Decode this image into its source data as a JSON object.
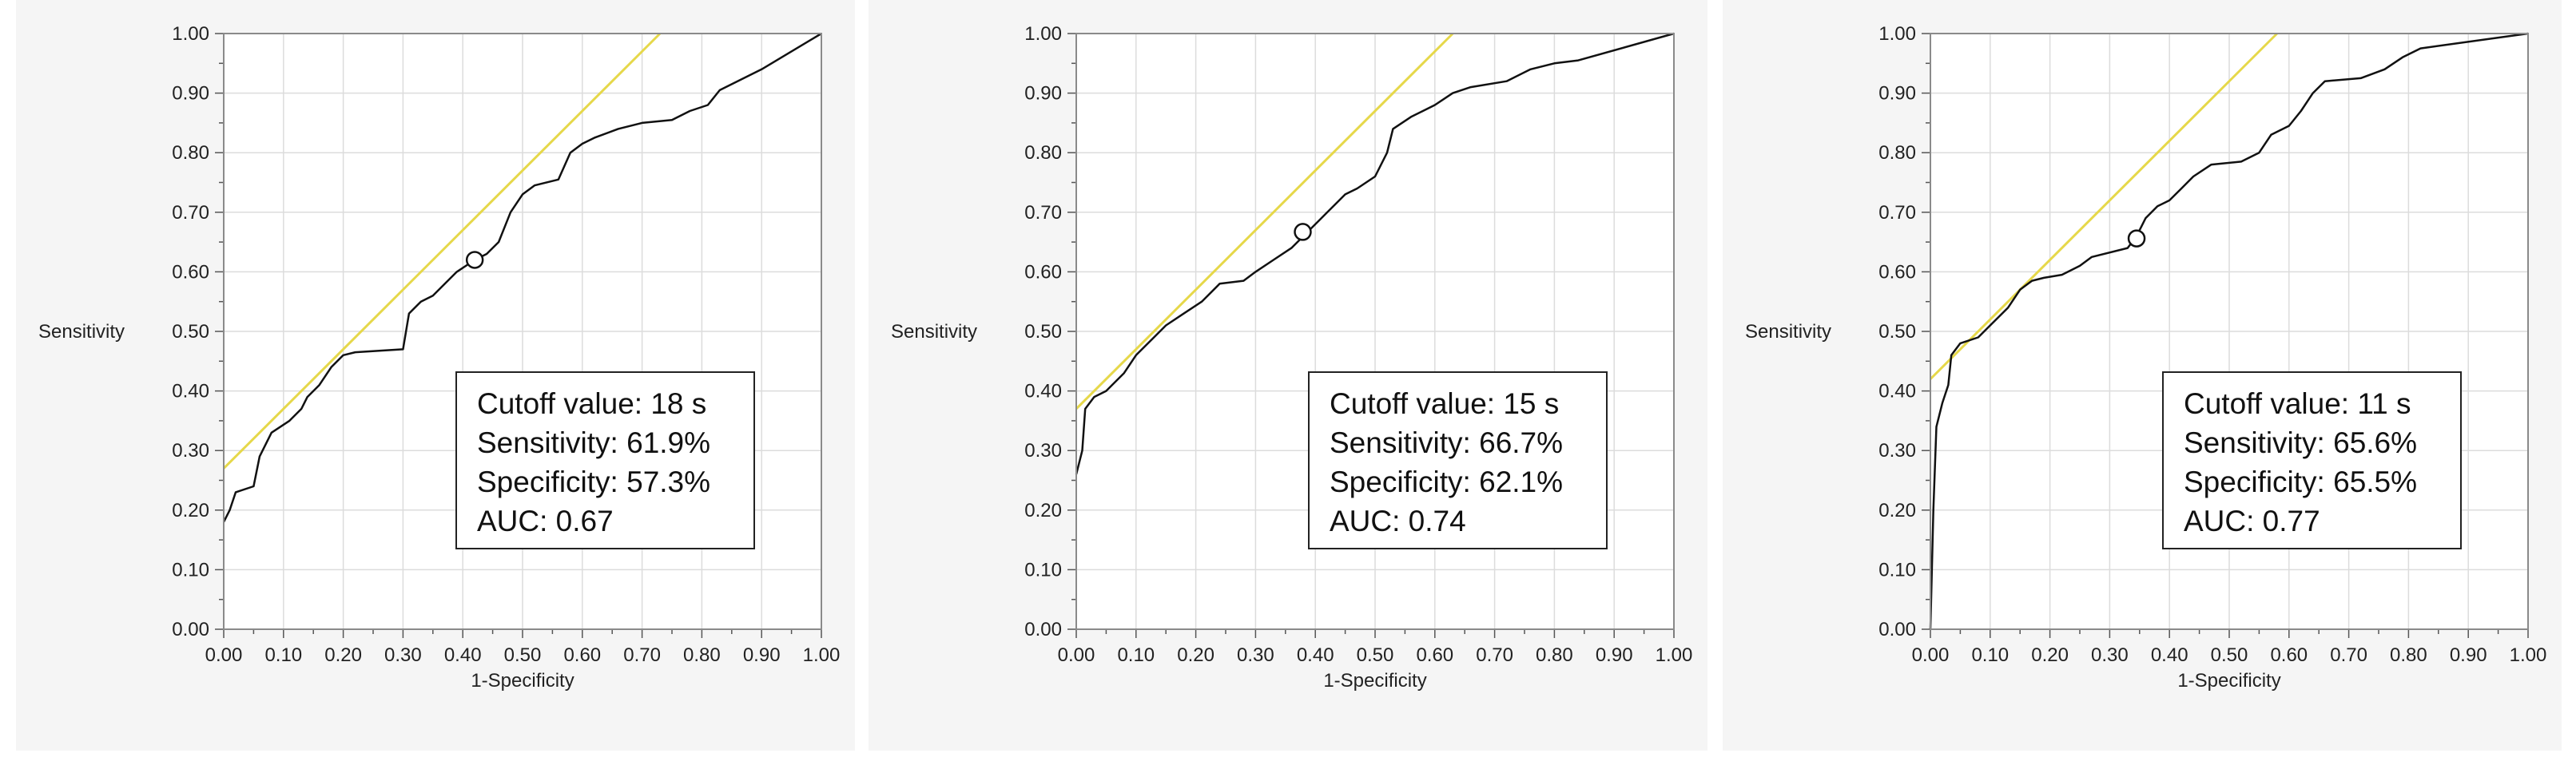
{
  "chart_data": [
    {
      "type": "line",
      "title": "",
      "xlabel": "1-Specificity",
      "ylabel": "Sensitivity",
      "xlim": [
        0,
        1
      ],
      "ylim": [
        0,
        1
      ],
      "xticks": [
        "0.00",
        "0.10",
        "0.20",
        "0.30",
        "0.40",
        "0.50",
        "0.60",
        "0.70",
        "0.80",
        "0.90",
        "1.00"
      ],
      "yticks": [
        "0.00",
        "0.10",
        "0.20",
        "0.30",
        "0.40",
        "0.50",
        "0.60",
        "0.70",
        "0.80",
        "0.90",
        "1.00"
      ],
      "grid": true,
      "colors": {
        "roc": "#111111",
        "tangent": "#e6d84a",
        "grid": "#dcdcdc"
      },
      "roc": [
        [
          0,
          0.18
        ],
        [
          0.01,
          0.2
        ],
        [
          0.02,
          0.23
        ],
        [
          0.05,
          0.24
        ],
        [
          0.06,
          0.29
        ],
        [
          0.08,
          0.33
        ],
        [
          0.11,
          0.35
        ],
        [
          0.13,
          0.37
        ],
        [
          0.14,
          0.39
        ],
        [
          0.16,
          0.41
        ],
        [
          0.18,
          0.44
        ],
        [
          0.2,
          0.46
        ],
        [
          0.22,
          0.465
        ],
        [
          0.3,
          0.47
        ],
        [
          0.31,
          0.53
        ],
        [
          0.33,
          0.55
        ],
        [
          0.35,
          0.56
        ],
        [
          0.37,
          0.58
        ],
        [
          0.39,
          0.6
        ],
        [
          0.42,
          0.62
        ],
        [
          0.44,
          0.63
        ],
        [
          0.46,
          0.65
        ],
        [
          0.48,
          0.7
        ],
        [
          0.5,
          0.73
        ],
        [
          0.52,
          0.745
        ],
        [
          0.56,
          0.755
        ],
        [
          0.58,
          0.8
        ],
        [
          0.6,
          0.815
        ],
        [
          0.62,
          0.825
        ],
        [
          0.66,
          0.84
        ],
        [
          0.7,
          0.85
        ],
        [
          0.75,
          0.855
        ],
        [
          0.78,
          0.87
        ],
        [
          0.81,
          0.88
        ],
        [
          0.83,
          0.905
        ],
        [
          0.9,
          0.94
        ],
        [
          1,
          1
        ]
      ],
      "tangent": {
        "intercept": 0.27,
        "slope": 1.0
      },
      "cutoff_point": [
        0.42,
        0.62
      ],
      "annotation": {
        "cutoff": "Cutoff value: 18 s",
        "sensitivity": "Sensitivity: 61.9%",
        "specificity": "Specificity: 57.3%",
        "auc": "AUC: 0.67"
      }
    },
    {
      "type": "line",
      "title": "",
      "xlabel": "1-Specificity",
      "ylabel": "Sensitivity",
      "xlim": [
        0,
        1
      ],
      "ylim": [
        0,
        1
      ],
      "xticks": [
        "0.00",
        "0.10",
        "0.20",
        "0.30",
        "0.40",
        "0.50",
        "0.60",
        "0.70",
        "0.80",
        "0.90",
        "1.00"
      ],
      "yticks": [
        "0.00",
        "0.10",
        "0.20",
        "0.30",
        "0.40",
        "0.50",
        "0.60",
        "0.70",
        "0.80",
        "0.90",
        "1.00"
      ],
      "grid": true,
      "colors": {
        "roc": "#111111",
        "tangent": "#e6d84a",
        "grid": "#dcdcdc"
      },
      "roc": [
        [
          0,
          0.26
        ],
        [
          0.01,
          0.3
        ],
        [
          0.015,
          0.37
        ],
        [
          0.03,
          0.39
        ],
        [
          0.05,
          0.4
        ],
        [
          0.08,
          0.43
        ],
        [
          0.1,
          0.46
        ],
        [
          0.13,
          0.49
        ],
        [
          0.15,
          0.51
        ],
        [
          0.18,
          0.53
        ],
        [
          0.21,
          0.55
        ],
        [
          0.24,
          0.58
        ],
        [
          0.28,
          0.585
        ],
        [
          0.3,
          0.6
        ],
        [
          0.33,
          0.62
        ],
        [
          0.36,
          0.64
        ],
        [
          0.39,
          0.67
        ],
        [
          0.42,
          0.7
        ],
        [
          0.45,
          0.73
        ],
        [
          0.47,
          0.74
        ],
        [
          0.5,
          0.76
        ],
        [
          0.52,
          0.8
        ],
        [
          0.53,
          0.84
        ],
        [
          0.56,
          0.86
        ],
        [
          0.58,
          0.87
        ],
        [
          0.6,
          0.88
        ],
        [
          0.63,
          0.9
        ],
        [
          0.66,
          0.91
        ],
        [
          0.72,
          0.92
        ],
        [
          0.76,
          0.94
        ],
        [
          0.8,
          0.95
        ],
        [
          0.84,
          0.955
        ],
        [
          1,
          1
        ]
      ],
      "tangent": {
        "intercept": 0.37,
        "slope": 1.0
      },
      "cutoff_point": [
        0.379,
        0.667
      ],
      "annotation": {
        "cutoff": "Cutoff value: 15 s",
        "sensitivity": "Sensitivity: 66.7%",
        "specificity": "Specificity: 62.1%",
        "auc": "AUC: 0.74"
      }
    },
    {
      "type": "line",
      "title": "",
      "xlabel": "1-Specificity",
      "ylabel": "Sensitivity",
      "xlim": [
        0,
        1
      ],
      "ylim": [
        0,
        1
      ],
      "xticks": [
        "0.00",
        "0.10",
        "0.20",
        "0.30",
        "0.40",
        "0.50",
        "0.60",
        "0.70",
        "0.80",
        "0.90",
        "1.00"
      ],
      "yticks": [
        "0.00",
        "0.10",
        "0.20",
        "0.30",
        "0.40",
        "0.50",
        "0.60",
        "0.70",
        "0.80",
        "0.90",
        "1.00"
      ],
      "grid": true,
      "colors": {
        "roc": "#111111",
        "tangent": "#e6d84a",
        "grid": "#dcdcdc"
      },
      "roc": [
        [
          0,
          0
        ],
        [
          0.005,
          0.2
        ],
        [
          0.01,
          0.34
        ],
        [
          0.02,
          0.38
        ],
        [
          0.03,
          0.41
        ],
        [
          0.035,
          0.46
        ],
        [
          0.05,
          0.48
        ],
        [
          0.08,
          0.49
        ],
        [
          0.1,
          0.51
        ],
        [
          0.13,
          0.54
        ],
        [
          0.15,
          0.57
        ],
        [
          0.17,
          0.585
        ],
        [
          0.19,
          0.59
        ],
        [
          0.22,
          0.595
        ],
        [
          0.25,
          0.61
        ],
        [
          0.27,
          0.625
        ],
        [
          0.33,
          0.64
        ],
        [
          0.345,
          0.66
        ],
        [
          0.36,
          0.69
        ],
        [
          0.38,
          0.71
        ],
        [
          0.4,
          0.72
        ],
        [
          0.42,
          0.74
        ],
        [
          0.44,
          0.76
        ],
        [
          0.47,
          0.78
        ],
        [
          0.52,
          0.785
        ],
        [
          0.55,
          0.8
        ],
        [
          0.57,
          0.83
        ],
        [
          0.6,
          0.845
        ],
        [
          0.62,
          0.87
        ],
        [
          0.64,
          0.9
        ],
        [
          0.66,
          0.92
        ],
        [
          0.72,
          0.925
        ],
        [
          0.76,
          0.94
        ],
        [
          0.79,
          0.96
        ],
        [
          0.82,
          0.975
        ],
        [
          1,
          1
        ]
      ],
      "tangent": {
        "intercept": 0.42,
        "slope": 1.0
      },
      "cutoff_point": [
        0.345,
        0.656
      ],
      "annotation": {
        "cutoff": "Cutoff value: 11 s",
        "sensitivity": "Sensitivity: 65.6%",
        "specificity": "Specificity: 65.5%",
        "auc": "AUC: 0.77"
      }
    }
  ]
}
